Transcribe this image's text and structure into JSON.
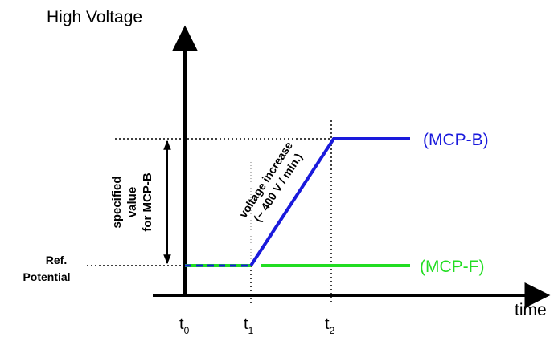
{
  "y_axis_label": "High Voltage",
  "x_axis_label": "time",
  "ticks": {
    "t0": {
      "base": "t",
      "sub": "0"
    },
    "t1": {
      "base": "t",
      "sub": "1"
    },
    "t2": {
      "base": "t",
      "sub": "2"
    }
  },
  "ref_label": {
    "line1": "Ref.",
    "line2": "Potential"
  },
  "specified_label": {
    "line1": "specified",
    "line2": "value",
    "line3": "for MCP-B"
  },
  "ramp_label": {
    "line1": "voltage increase",
    "line2": "(~ 400 V / min.)"
  },
  "series": {
    "mcp_b": {
      "name": "(MCP-B)",
      "color": "#1a1adc"
    },
    "mcp_f": {
      "name": "(MCP-F)",
      "color": "#22dd22"
    }
  },
  "colors": {
    "axis": "#000000",
    "guide": "#000000"
  }
}
